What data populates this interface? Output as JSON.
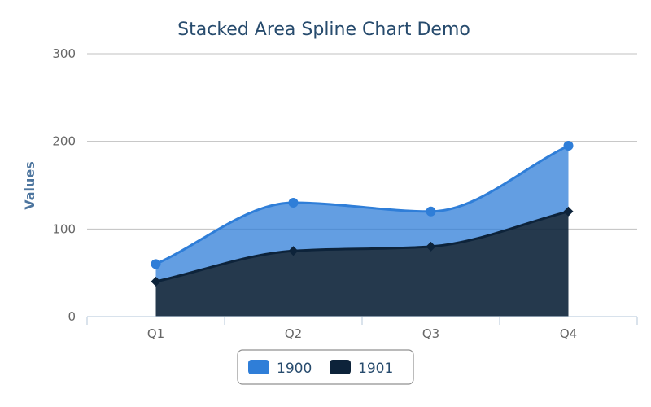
{
  "chart_data": {
    "type": "area",
    "stacked": true,
    "smooth": true,
    "title": "Stacked Area Spline Chart Demo",
    "xlabel": "",
    "ylabel": "Values",
    "categories": [
      "Q1",
      "Q2",
      "Q3",
      "Q4"
    ],
    "ylim": [
      0,
      300
    ],
    "yticks": [
      "0",
      "100",
      "200",
      "300"
    ],
    "grid": true,
    "legend_position": "bottom",
    "series": [
      {
        "name": "1900",
        "values": [
          20,
          55,
          40,
          75
        ],
        "color": "#2f7ed8",
        "marker": "circle"
      },
      {
        "name": "1901",
        "values": [
          40,
          75,
          80,
          120
        ],
        "color": "#0d233a",
        "marker": "diamond"
      }
    ]
  }
}
